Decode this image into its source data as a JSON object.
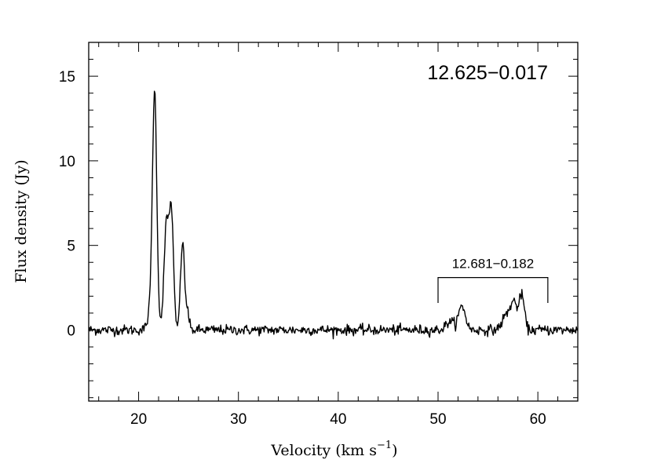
{
  "chart_data": {
    "type": "line",
    "title": "",
    "xlabel": "Velocity (km s",
    "xlabel_sup": "−1",
    "xlabel_close": ")",
    "ylabel": "Flux density (Jy)",
    "xlim": [
      15,
      64
    ],
    "ylim": [
      -4.2,
      17
    ],
    "xticks": [
      20,
      30,
      40,
      50,
      60
    ],
    "xtick_labels": [
      "20",
      "30",
      "40",
      "50",
      "60"
    ],
    "yticks": [
      0,
      5,
      10,
      15
    ],
    "ytick_labels": [
      "0",
      "5",
      "10",
      "15"
    ],
    "grid": false,
    "legend": "none",
    "line_color": "#000000",
    "noise_sigma": 0.15,
    "peaks": [
      {
        "x": 21.6,
        "y": 14.1,
        "w": 0.22
      },
      {
        "x": 22.8,
        "y": 6.3,
        "w": 0.25
      },
      {
        "x": 23.3,
        "y": 6.5,
        "w": 0.2
      },
      {
        "x": 24.4,
        "y": 5.2,
        "w": 0.2
      },
      {
        "x": 24.9,
        "y": 1.1,
        "w": 0.15
      },
      {
        "x": 21.1,
        "y": 0.8,
        "w": 0.25
      },
      {
        "x": 51.2,
        "y": 0.5,
        "w": 0.4
      },
      {
        "x": 52.4,
        "y": 1.4,
        "w": 0.35
      },
      {
        "x": 56.8,
        "y": 0.8,
        "w": 0.4
      },
      {
        "x": 57.6,
        "y": 1.6,
        "w": 0.35
      },
      {
        "x": 58.4,
        "y": 2.0,
        "w": 0.25
      }
    ],
    "annotations": [
      {
        "text": "12.625−0.017"
      },
      {
        "text": "12.681−0.182",
        "bracket_x": [
          50,
          61
        ],
        "bracket_y": 3.1,
        "bracket_bottom": 1.6
      }
    ]
  }
}
